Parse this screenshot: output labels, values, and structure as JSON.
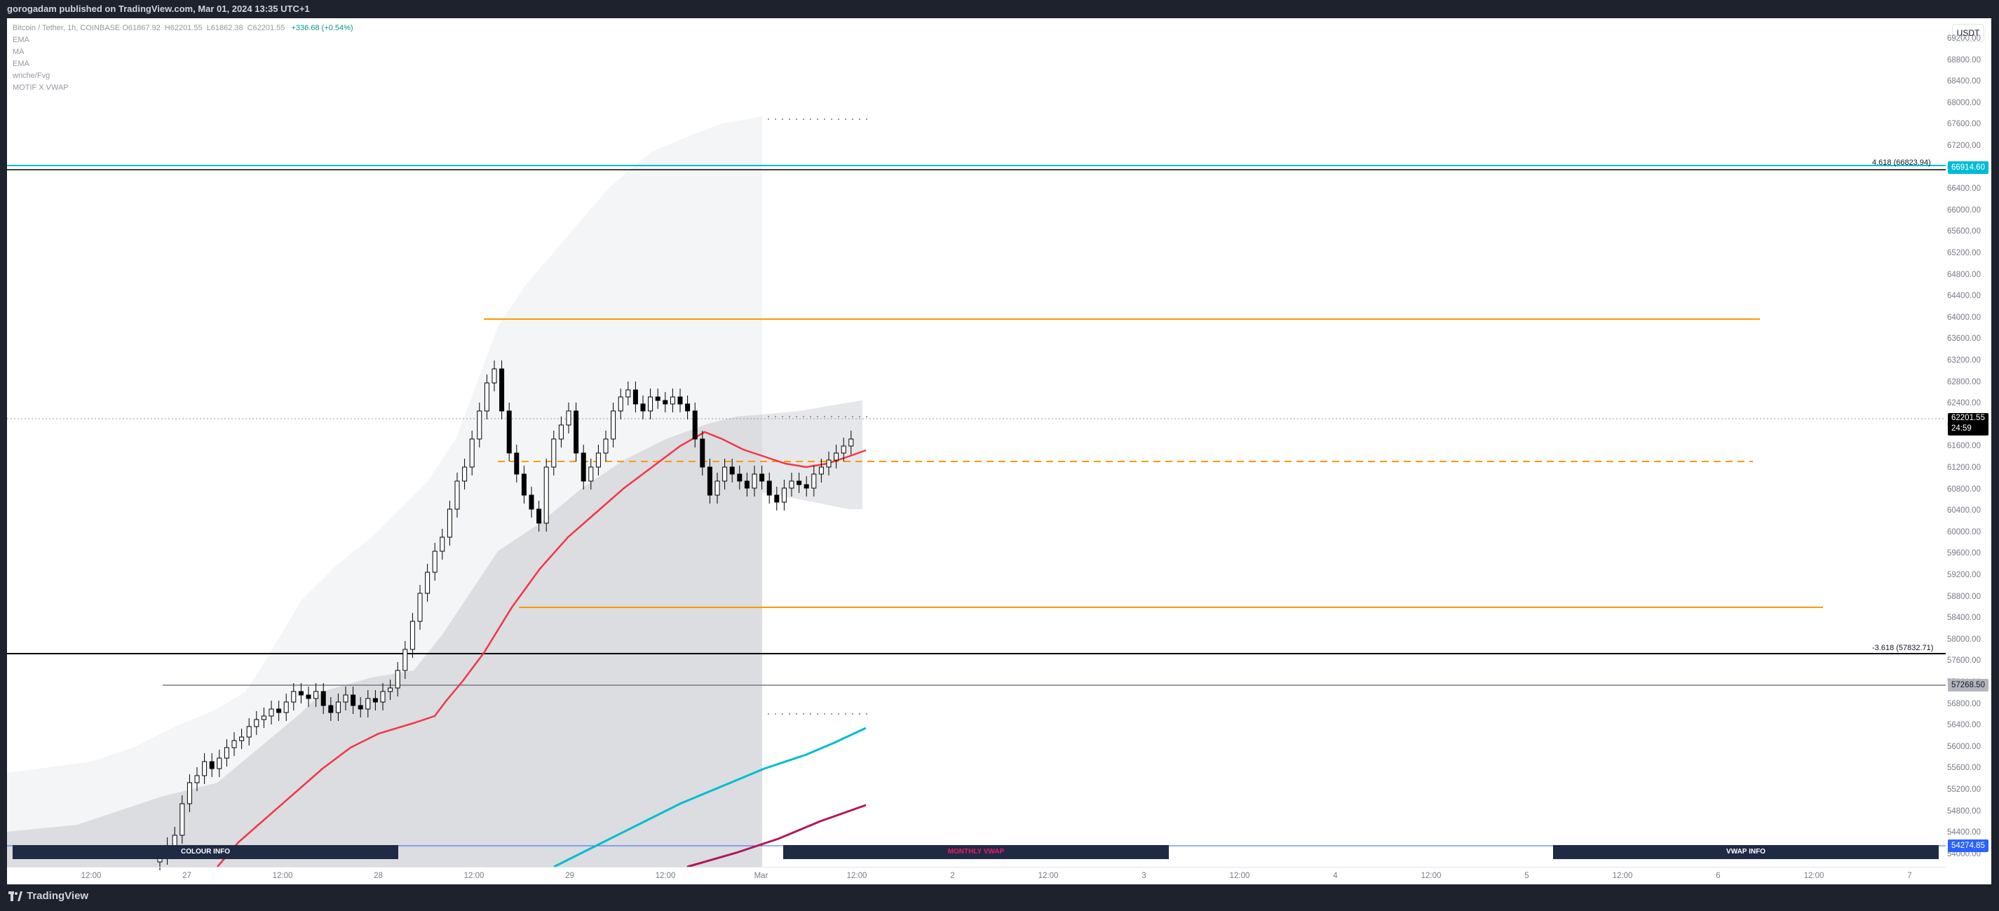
{
  "header": {
    "published_text": "gorogadam published on TradingView.com, Mar 01, 2024 13:35 UTC+1"
  },
  "footer": {
    "brand": "TradingView"
  },
  "legend": {
    "symbol": "Bitcoin / Tether, 1h, COINBASE",
    "ohlc": [
      {
        "k": "O",
        "v": "61867.92"
      },
      {
        "k": "H",
        "v": "62201.55"
      },
      {
        "k": "L",
        "v": "61862.38"
      },
      {
        "k": "C",
        "v": "62201.55"
      }
    ],
    "change": "+336.68 (+0.54%)",
    "indicators": [
      "EMA",
      "MA",
      "EMA",
      "wnche/Fvg",
      "MOTIF X VWAP"
    ]
  },
  "currency_button": "USDT",
  "price_axis": {
    "ticks": [
      "69200.00",
      "68800.00",
      "68400.00",
      "68000.00",
      "67600.00",
      "67200.00",
      "66800.00",
      "66400.00",
      "66000.00",
      "65600.00",
      "65200.00",
      "64800.00",
      "64400.00",
      "64000.00",
      "63600.00",
      "63200.00",
      "62800.00",
      "62400.00",
      "62000.00",
      "61600.00",
      "61200.00",
      "60800.00",
      "60400.00",
      "60000.00",
      "59600.00",
      "59200.00",
      "58800.00",
      "58400.00",
      "58000.00",
      "57600.00",
      "57200.00",
      "56800.00",
      "56400.00",
      "56000.00",
      "55600.00",
      "55200.00",
      "54800.00",
      "54400.00",
      "54000.00"
    ],
    "tags": {
      "fib_top": {
        "text": "66914.60",
        "color": "#00bcd4"
      },
      "last": {
        "text": "62201.55",
        "sub": "24:59",
        "color": "#000000"
      },
      "level_mid": {
        "text": "57268.50",
        "color": "#b2b5be"
      },
      "level_low": {
        "text": "54274.85",
        "color": "#2962ff"
      }
    }
  },
  "fib_labels": {
    "upper": "4.618 (66823.94)",
    "lower": "-3.618 (57832.71)"
  },
  "time_axis": {
    "ticks": [
      "12:00",
      "27",
      "12:00",
      "28",
      "12:00",
      "29",
      "12:00",
      "Mar",
      "12:00",
      "2",
      "12:00",
      "3",
      "12:00",
      "4",
      "12:00",
      "5",
      "12:00",
      "6",
      "12:00",
      "7"
    ]
  },
  "info_buttons": {
    "colour": "COLOUR INFO",
    "monthly": "MONTHLY VWAP",
    "vwap": "VWAP INFO"
  },
  "colors": {
    "accent_cyan": "#00bcd4",
    "orange": "#ff9800",
    "ema_red": "#f23645",
    "vwap_magenta": "#b0185b",
    "up": "#ffffff",
    "down": "#000000"
  }
}
